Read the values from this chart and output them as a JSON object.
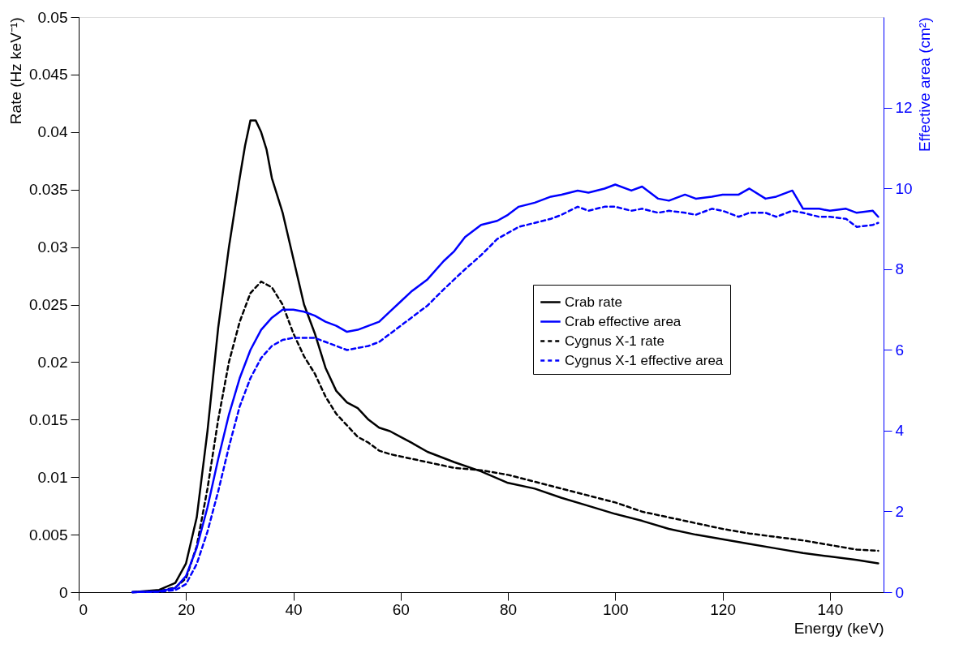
{
  "chart_data": {
    "type": "line",
    "xlabel": "Energy (keV)",
    "ylabel": "Rate (Hz keV⁻¹)",
    "y2label": "Effective area (cm²)",
    "xlim": [
      0,
      150
    ],
    "xticks": [
      0,
      20,
      40,
      60,
      80,
      100,
      120,
      140
    ],
    "ylim": [
      0,
      0.05
    ],
    "yticks": [
      0,
      0.005,
      0.01,
      0.015,
      0.02,
      0.025,
      0.03,
      0.035,
      0.04,
      0.045,
      0.05
    ],
    "y2lim": [
      0,
      14.25
    ],
    "y2ticks": [
      0,
      2,
      4,
      6,
      8,
      10,
      12
    ],
    "grid": false,
    "legend": "right",
    "marker": "none",
    "series": [
      {
        "name": "Crab rate",
        "color": "#000000",
        "line_style": "solid",
        "axis": "y",
        "x": [
          10,
          15,
          18,
          20,
          22,
          24,
          26,
          28,
          30,
          31,
          32,
          33,
          34,
          35,
          36,
          38,
          40,
          42,
          44,
          46,
          48,
          50,
          52,
          54,
          56,
          58,
          60,
          62,
          65,
          70,
          75,
          80,
          85,
          90,
          95,
          100,
          105,
          110,
          115,
          120,
          125,
          130,
          135,
          140,
          145,
          149
        ],
        "values": [
          0,
          0.0002,
          0.0008,
          0.0025,
          0.0065,
          0.014,
          0.023,
          0.03,
          0.036,
          0.0388,
          0.041,
          0.041,
          0.04,
          0.0385,
          0.036,
          0.033,
          0.029,
          0.025,
          0.0225,
          0.0195,
          0.0175,
          0.0165,
          0.016,
          0.015,
          0.0143,
          0.014,
          0.0135,
          0.013,
          0.0122,
          0.0113,
          0.0105,
          0.0095,
          0.009,
          0.0082,
          0.0075,
          0.0068,
          0.0062,
          0.0055,
          0.005,
          0.0046,
          0.0042,
          0.0038,
          0.0034,
          0.0031,
          0.0028,
          0.0025
        ]
      },
      {
        "name": "Crab effective area",
        "color": "#0000ff",
        "line_style": "solid",
        "axis": "y2",
        "x": [
          10,
          15,
          18,
          20,
          22,
          24,
          26,
          28,
          30,
          32,
          34,
          36,
          38,
          40,
          42,
          44,
          46,
          48,
          50,
          52,
          54,
          56,
          58,
          60,
          62,
          65,
          68,
          70,
          72,
          75,
          78,
          80,
          82,
          85,
          88,
          90,
          93,
          95,
          98,
          100,
          103,
          105,
          108,
          110,
          113,
          115,
          118,
          120,
          123,
          125,
          128,
          130,
          133,
          135,
          138,
          140,
          143,
          145,
          148,
          149
        ],
        "values": [
          0,
          0.02,
          0.1,
          0.4,
          1.1,
          2.1,
          3.3,
          4.4,
          5.3,
          6.0,
          6.5,
          6.8,
          7.0,
          7.0,
          6.95,
          6.85,
          6.7,
          6.6,
          6.45,
          6.5,
          6.6,
          6.7,
          6.95,
          7.2,
          7.45,
          7.75,
          8.2,
          8.45,
          8.8,
          9.1,
          9.2,
          9.35,
          9.55,
          9.65,
          9.8,
          9.85,
          9.95,
          9.9,
          10.0,
          10.1,
          9.95,
          10.05,
          9.75,
          9.7,
          9.85,
          9.75,
          9.8,
          9.85,
          9.85,
          10.0,
          9.75,
          9.8,
          9.95,
          9.5,
          9.5,
          9.45,
          9.5,
          9.4,
          9.45,
          9.3
        ]
      },
      {
        "name": "Cygnus X-1 rate",
        "color": "#000000",
        "line_style": "dashed",
        "axis": "y",
        "x": [
          10,
          15,
          18,
          20,
          22,
          24,
          26,
          28,
          30,
          32,
          34,
          36,
          38,
          40,
          42,
          44,
          46,
          48,
          50,
          52,
          54,
          56,
          58,
          60,
          65,
          70,
          75,
          80,
          85,
          90,
          95,
          100,
          105,
          110,
          115,
          120,
          125,
          130,
          135,
          140,
          145,
          149
        ],
        "values": [
          0,
          0.0001,
          0.0004,
          0.0012,
          0.004,
          0.009,
          0.015,
          0.02,
          0.0235,
          0.026,
          0.027,
          0.0265,
          0.025,
          0.0225,
          0.0205,
          0.019,
          0.017,
          0.0155,
          0.0145,
          0.0135,
          0.013,
          0.0123,
          0.012,
          0.0118,
          0.0113,
          0.0108,
          0.0106,
          0.0102,
          0.0096,
          0.009,
          0.0084,
          0.0078,
          0.007,
          0.0065,
          0.006,
          0.0055,
          0.0051,
          0.0048,
          0.0045,
          0.0041,
          0.0037,
          0.0036
        ]
      },
      {
        "name": "Cygnus X-1 effective area",
        "color": "#0000ff",
        "line_style": "dashed",
        "axis": "y2",
        "x": [
          10,
          15,
          18,
          20,
          22,
          24,
          26,
          28,
          30,
          32,
          34,
          36,
          38,
          40,
          42,
          44,
          46,
          48,
          50,
          52,
          54,
          56,
          58,
          60,
          62,
          65,
          68,
          70,
          72,
          75,
          78,
          80,
          82,
          85,
          88,
          90,
          93,
          95,
          98,
          100,
          103,
          105,
          108,
          110,
          113,
          115,
          118,
          120,
          123,
          125,
          128,
          130,
          133,
          135,
          138,
          140,
          143,
          145,
          148,
          149
        ],
        "values": [
          0,
          0.01,
          0.05,
          0.2,
          0.7,
          1.5,
          2.5,
          3.6,
          4.6,
          5.3,
          5.8,
          6.1,
          6.25,
          6.3,
          6.3,
          6.3,
          6.2,
          6.1,
          6.0,
          6.05,
          6.1,
          6.2,
          6.4,
          6.6,
          6.8,
          7.1,
          7.5,
          7.75,
          8.0,
          8.35,
          8.75,
          8.9,
          9.05,
          9.15,
          9.25,
          9.35,
          9.55,
          9.45,
          9.55,
          9.55,
          9.45,
          9.5,
          9.4,
          9.45,
          9.4,
          9.35,
          9.5,
          9.45,
          9.3,
          9.4,
          9.4,
          9.3,
          9.45,
          9.4,
          9.3,
          9.3,
          9.25,
          9.05,
          9.1,
          9.15
        ]
      }
    ]
  }
}
